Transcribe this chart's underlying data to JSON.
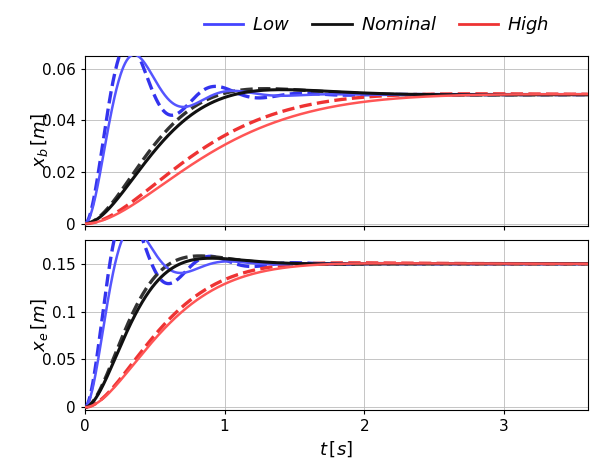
{
  "t_max": 3.6,
  "top": {
    "ylabel": "$x_b\\,[m]$",
    "ylim": [
      -0.001,
      0.065
    ],
    "yticks": [
      0,
      0.02,
      0.04,
      0.06
    ],
    "final": 0.05,
    "solid": [
      {
        "zeta": 0.35,
        "wn": 9.5,
        "color": "#5555ff",
        "lw": 1.8
      },
      {
        "zeta": 0.72,
        "wn": 3.2,
        "color": "#111111",
        "lw": 2.2
      },
      {
        "zeta": 0.88,
        "wn": 1.9,
        "color": "#ff5555",
        "lw": 1.8
      }
    ],
    "dashed": [
      {
        "zeta": 0.28,
        "wn": 10.5,
        "color": "#3333ee",
        "lw": 2.4
      },
      {
        "zeta": 0.7,
        "wn": 3.4,
        "color": "#333333",
        "lw": 2.4
      },
      {
        "zeta": 0.85,
        "wn": 2.1,
        "color": "#ee3333",
        "lw": 2.4
      }
    ]
  },
  "bottom": {
    "ylabel": "$x_e\\,[m]$",
    "ylim": [
      -0.003,
      0.175
    ],
    "yticks": [
      0,
      0.05,
      0.1,
      0.15
    ],
    "final": 0.15,
    "solid": [
      {
        "zeta": 0.4,
        "wn": 10.0,
        "color": "#5555ff",
        "lw": 1.8
      },
      {
        "zeta": 0.72,
        "wn": 5.0,
        "color": "#111111",
        "lw": 2.2
      },
      {
        "zeta": 0.88,
        "wn": 3.0,
        "color": "#ff5555",
        "lw": 1.8
      }
    ],
    "dashed": [
      {
        "zeta": 0.3,
        "wn": 11.0,
        "color": "#3333ee",
        "lw": 2.4
      },
      {
        "zeta": 0.68,
        "wn": 5.2,
        "color": "#333333",
        "lw": 2.4
      },
      {
        "zeta": 0.85,
        "wn": 3.1,
        "color": "#ee3333",
        "lw": 2.4
      }
    ]
  },
  "xlabel": "$t\\,[s]$",
  "xticks": [
    0,
    1,
    2,
    3
  ],
  "xlim": [
    0,
    3.6
  ],
  "legend": [
    {
      "label": "$\\mathit{Low}$",
      "color": "#4444ff"
    },
    {
      "label": "$\\mathit{Nominal}$",
      "color": "#111111"
    },
    {
      "label": "$\\mathit{High}$",
      "color": "#ee3333"
    }
  ]
}
